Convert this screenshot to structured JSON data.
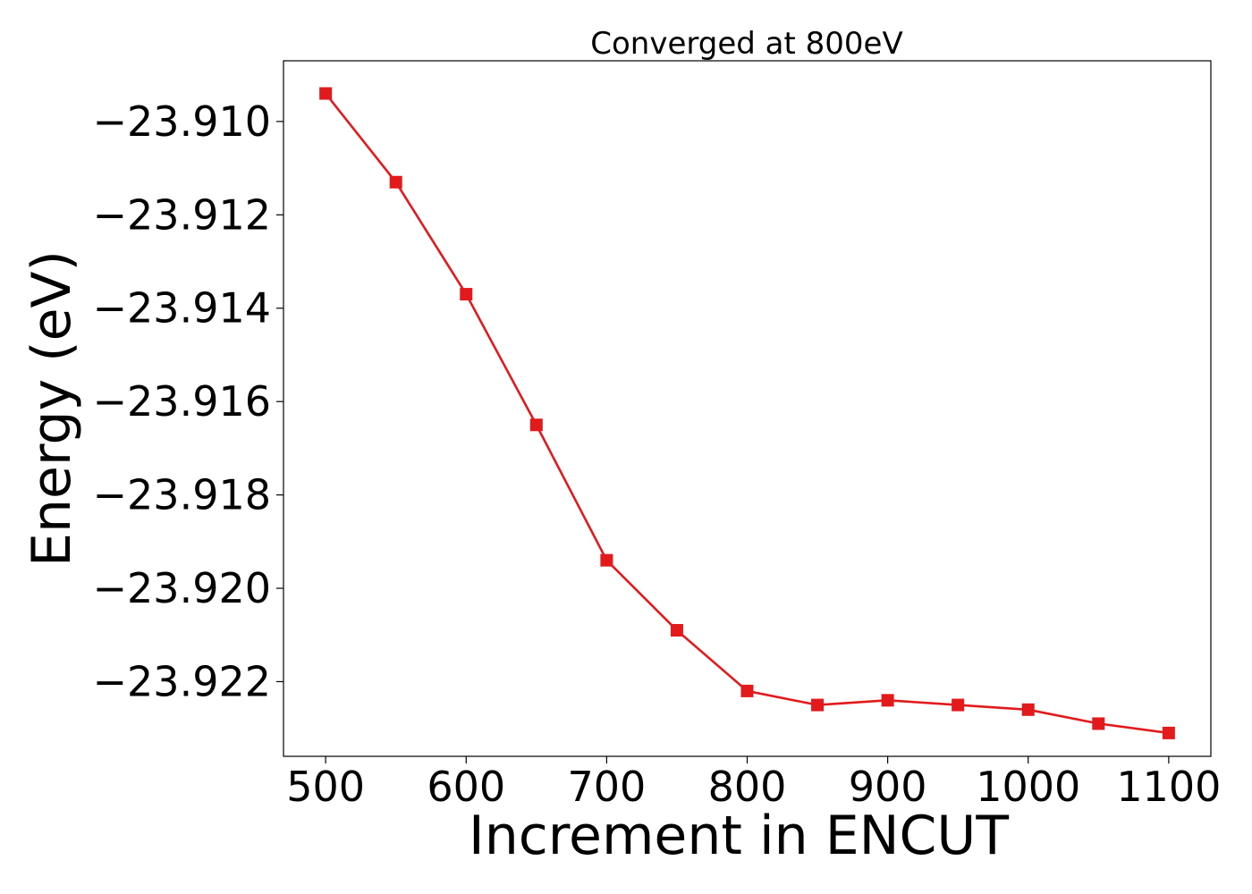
{
  "chart_data": {
    "type": "line",
    "title": "Converged at 800eV",
    "xlabel": "Increment in ENCUT",
    "ylabel": "Energy (eV)",
    "xlim": [
      470,
      1130
    ],
    "ylim": [
      -23.9236,
      -23.9087
    ],
    "xticks": [
      500,
      600,
      700,
      800,
      900,
      1000,
      1100
    ],
    "xtick_labels": [
      "500",
      "600",
      "700",
      "800",
      "900",
      "1000",
      "1100"
    ],
    "yticks": [
      -23.91,
      -23.912,
      -23.914,
      -23.916,
      -23.918,
      -23.92,
      -23.922
    ],
    "ytick_labels": [
      "−23.910",
      "−23.912",
      "−23.914",
      "−23.916",
      "−23.918",
      "−23.920",
      "−23.922"
    ],
    "grid": false,
    "series": [
      {
        "color": "#e31a1c",
        "marker": "square",
        "x": [
          500,
          550,
          600,
          650,
          700,
          750,
          800,
          850,
          900,
          950,
          1000,
          1050,
          1100
        ],
        "y": [
          -23.9094,
          -23.9113,
          -23.9137,
          -23.9165,
          -23.9194,
          -23.9209,
          -23.9222,
          -23.9225,
          -23.9224,
          -23.9225,
          -23.9226,
          -23.9229,
          -23.9231
        ]
      }
    ]
  }
}
